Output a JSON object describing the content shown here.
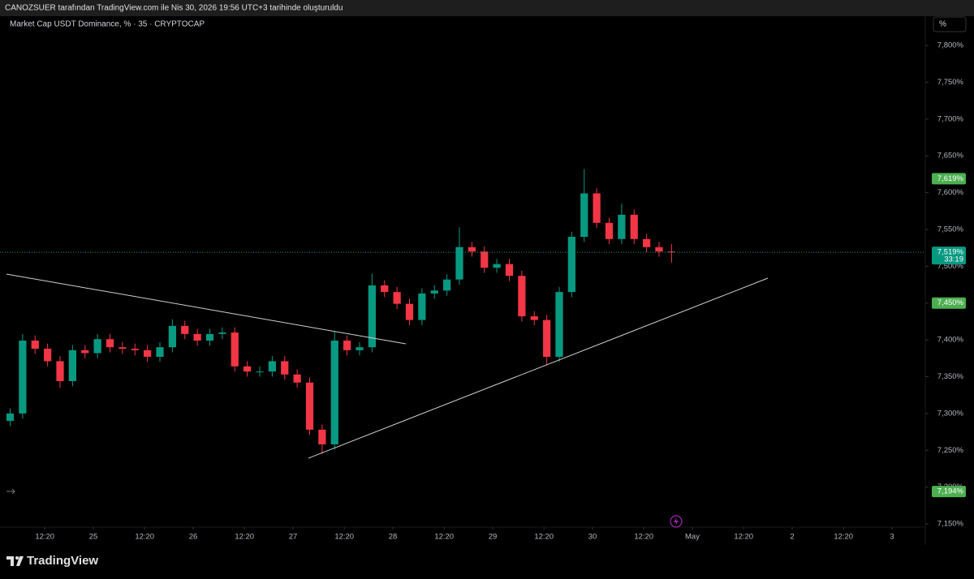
{
  "header": {
    "text": "CANOZSUER tarafından TradingView.com ile Nis 30, 2026 19:56 UTC+3 tarihinde oluşturuldu"
  },
  "footer": {
    "brand": "TradingView"
  },
  "chart_data": {
    "type": "candlestick",
    "title": "Market Cap USDT Dominance, % · 35 · CRYPTOCAP",
    "unit_button": "%",
    "x": [
      -20,
      -17,
      -14,
      -11,
      -8,
      -5,
      -2,
      1,
      4,
      7,
      10,
      13,
      16,
      19,
      22,
      25,
      28,
      31,
      34,
      37,
      40,
      43,
      46,
      49,
      52,
      55,
      58,
      61,
      64,
      67,
      70,
      73,
      76,
      79,
      82,
      85,
      88,
      91,
      94,
      97,
      100,
      103,
      106,
      109,
      112,
      115,
      118,
      121,
      124,
      127,
      130,
      133,
      136,
      139
    ],
    "open": [
      7.29,
      7.3,
      7.399,
      7.388,
      7.371,
      7.344,
      7.386,
      7.382,
      7.401,
      7.39,
      7.388,
      7.386,
      7.377,
      7.39,
      7.419,
      7.408,
      7.399,
      7.408,
      7.41,
      7.364,
      7.357,
      7.357,
      7.371,
      7.353,
      7.342,
      7.278,
      7.258,
      7.399,
      7.386,
      7.39,
      7.474,
      7.465,
      7.449,
      7.427,
      7.463,
      7.467,
      7.482,
      7.526,
      7.52,
      7.498,
      7.503,
      7.487,
      7.432,
      7.427,
      7.377,
      7.465,
      7.54,
      7.599,
      7.559,
      7.537,
      7.57,
      7.537,
      7.526,
      7.52
    ],
    "high": [
      7.307,
      7.408,
      7.406,
      7.395,
      7.378,
      7.393,
      7.393,
      7.408,
      7.408,
      7.397,
      7.395,
      7.393,
      7.397,
      7.428,
      7.426,
      7.415,
      7.415,
      7.417,
      7.417,
      7.371,
      7.364,
      7.378,
      7.378,
      7.36,
      7.349,
      7.285,
      7.412,
      7.406,
      7.397,
      7.49,
      7.481,
      7.472,
      7.456,
      7.47,
      7.474,
      7.489,
      7.553,
      7.533,
      7.527,
      7.51,
      7.51,
      7.494,
      7.439,
      7.434,
      7.472,
      7.547,
      7.632,
      7.606,
      7.566,
      7.585,
      7.577,
      7.544,
      7.533,
      7.53
    ],
    "low": [
      7.283,
      7.293,
      7.381,
      7.364,
      7.335,
      7.337,
      7.375,
      7.375,
      7.383,
      7.381,
      7.379,
      7.37,
      7.37,
      7.383,
      7.401,
      7.392,
      7.392,
      7.401,
      7.357,
      7.35,
      7.35,
      7.35,
      7.346,
      7.335,
      7.271,
      7.245,
      7.251,
      7.379,
      7.379,
      7.383,
      7.458,
      7.442,
      7.42,
      7.42,
      7.456,
      7.46,
      7.475,
      7.513,
      7.491,
      7.491,
      7.48,
      7.425,
      7.42,
      7.366,
      7.37,
      7.458,
      7.533,
      7.552,
      7.53,
      7.53,
      7.53,
      7.519,
      7.513,
      7.505
    ],
    "close": [
      7.3,
      7.399,
      7.388,
      7.371,
      7.344,
      7.386,
      7.382,
      7.401,
      7.39,
      7.388,
      7.386,
      7.377,
      7.39,
      7.419,
      7.408,
      7.399,
      7.408,
      7.41,
      7.364,
      7.357,
      7.357,
      7.371,
      7.353,
      7.342,
      7.278,
      7.258,
      7.399,
      7.386,
      7.39,
      7.474,
      7.465,
      7.449,
      7.427,
      7.463,
      7.467,
      7.482,
      7.526,
      7.52,
      7.498,
      7.503,
      7.487,
      7.432,
      7.427,
      7.377,
      7.465,
      7.54,
      7.599,
      7.559,
      7.537,
      7.57,
      7.537,
      7.526,
      7.52,
      7.519
    ],
    "up_color": "#089981",
    "down_color": "#f23645",
    "xlim": [
      -22.44,
      200
    ],
    "ylim": [
      7.1214,
      7.8397
    ],
    "xticks": [
      {
        "value": -11.667,
        "label": "12:20"
      },
      {
        "value": 0,
        "label": "25"
      },
      {
        "value": 12.333,
        "label": "12:20"
      },
      {
        "value": 24,
        "label": "26"
      },
      {
        "value": 36.333,
        "label": "12:20"
      },
      {
        "value": 48,
        "label": "27"
      },
      {
        "value": 60.333,
        "label": "12:20"
      },
      {
        "value": 72,
        "label": "28"
      },
      {
        "value": 84.333,
        "label": "12:20"
      },
      {
        "value": 96,
        "label": "29"
      },
      {
        "value": 108.333,
        "label": "12:20"
      },
      {
        "value": 120,
        "label": "30"
      },
      {
        "value": 132.333,
        "label": "12:20"
      },
      {
        "value": 144,
        "label": "May"
      },
      {
        "value": 156.333,
        "label": "12:20"
      },
      {
        "value": 168,
        "label": "2"
      },
      {
        "value": 180.333,
        "label": "12:20"
      },
      {
        "value": 192,
        "label": "3"
      }
    ],
    "yticks": [
      {
        "value": 7.15,
        "label": "7,150%"
      },
      {
        "value": 7.2,
        "label": "7,200%"
      },
      {
        "value": 7.25,
        "label": "7,250%"
      },
      {
        "value": 7.3,
        "label": "7,300%"
      },
      {
        "value": 7.35,
        "label": "7,350%"
      },
      {
        "value": 7.4,
        "label": "7,400%"
      },
      {
        "value": 7.45,
        "label": "7,450%"
      },
      {
        "value": 7.5,
        "label": "7,500%"
      },
      {
        "value": 7.55,
        "label": "7,550%"
      },
      {
        "value": 7.6,
        "label": "7,600%"
      },
      {
        "value": 7.65,
        "label": "7,650%"
      },
      {
        "value": 7.7,
        "label": "7,700%"
      },
      {
        "value": 7.75,
        "label": "7,750%"
      },
      {
        "value": 7.8,
        "label": "7,800%"
      }
    ],
    "price_labels": [
      {
        "value": 7.619,
        "label": "7,619%",
        "color": "#4caf50"
      },
      {
        "value": 7.519,
        "label": "7,519%",
        "color": "#089981",
        "countdown": "33:19"
      },
      {
        "value": 7.45,
        "label": "7,450%",
        "color": "#4caf50"
      },
      {
        "value": 7.194,
        "label": "7,194%",
        "color": "#4caf50"
      }
    ]
  }
}
